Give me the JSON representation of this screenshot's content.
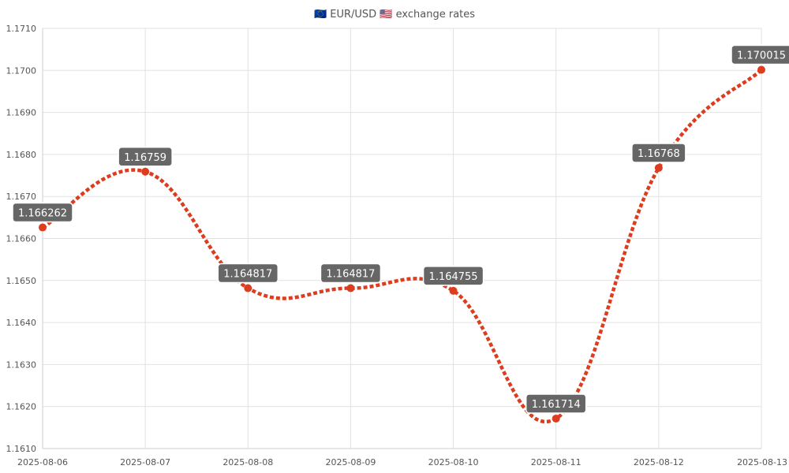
{
  "chart_data": {
    "type": "line",
    "title": "🇪🇺 EUR/USD 🇺🇸 exchange rates",
    "x": [
      "2025-08-06",
      "2025-08-07",
      "2025-08-08",
      "2025-08-09",
      "2025-08-10",
      "2025-08-11",
      "2025-08-12",
      "2025-08-13"
    ],
    "series": [
      {
        "values": [
          1.166262,
          1.16759,
          1.164817,
          1.164817,
          1.164755,
          1.161714,
          1.16768,
          1.170015
        ],
        "labels": [
          "1.166262",
          "1.16759",
          "1.164817",
          "1.164817",
          "1.164755",
          "1.161714",
          "1.16768",
          "1.170015"
        ]
      }
    ],
    "ylim": [
      1.161,
      1.171
    ],
    "yticks": [
      "1.1610",
      "1.1620",
      "1.1630",
      "1.1640",
      "1.1650",
      "1.1660",
      "1.1670",
      "1.1680",
      "1.1690",
      "1.1700",
      "1.1710"
    ],
    "grid": true,
    "legend": "none",
    "colors": {
      "line": "#dd3d1f",
      "label_bg": "#666666",
      "grid": "#e2e2e2",
      "text": "#555555"
    }
  }
}
